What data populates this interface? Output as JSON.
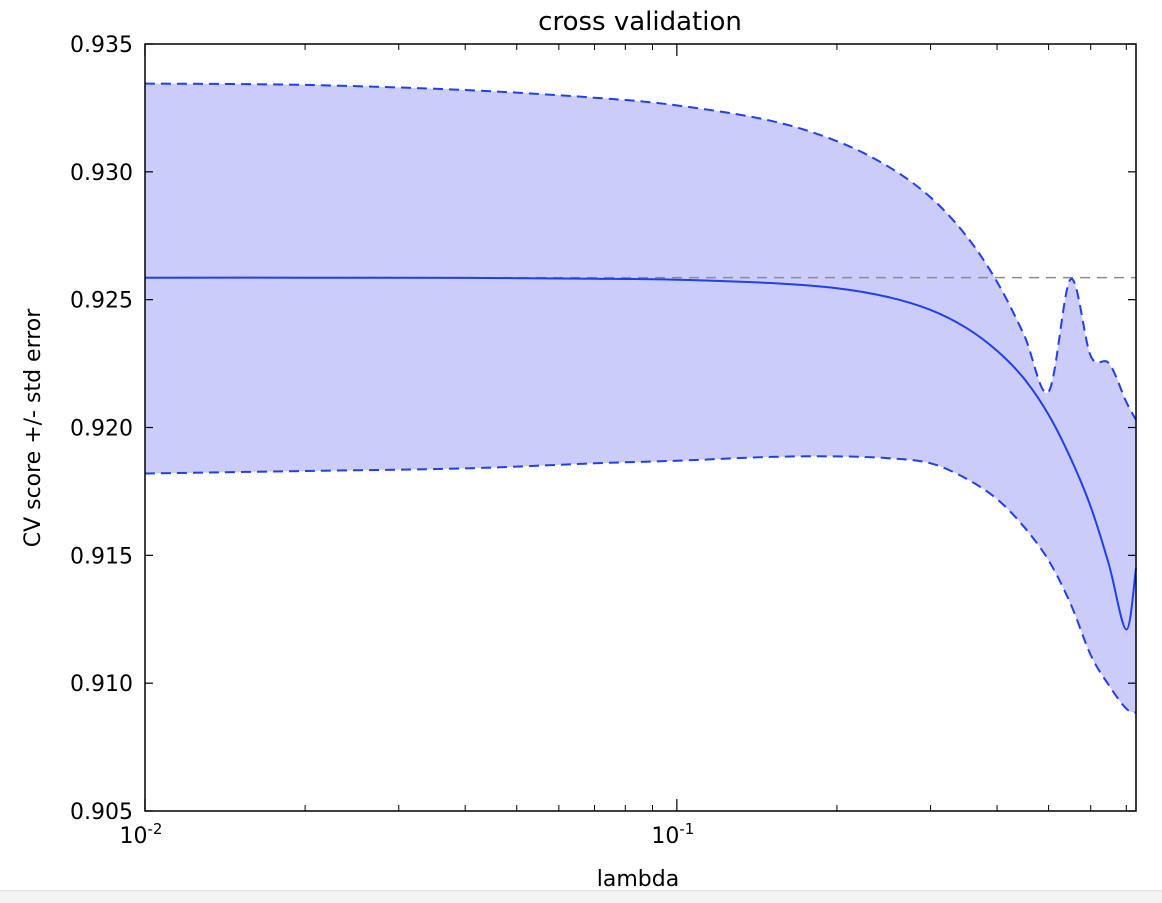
{
  "chart_data": {
    "type": "line",
    "title": "cross validation",
    "xlabel": "lambda",
    "ylabel": "CV score +/- std error",
    "xscale": "log",
    "xlim": [
      0.01,
      0.73
    ],
    "ylim": [
      0.905,
      0.935
    ],
    "yticks": [
      "0.935",
      "0.930",
      "0.925",
      "0.920",
      "0.915",
      "0.910",
      "0.905"
    ],
    "xticks": [
      {
        "value": 0.01,
        "base": "10",
        "exp": "-2"
      },
      {
        "value": 0.1,
        "base": "10",
        "exp": "-1"
      }
    ],
    "grid": false,
    "x": [
      0.01,
      0.02,
      0.04,
      0.07,
      0.1,
      0.15,
      0.2,
      0.25,
      0.3,
      0.35,
      0.4,
      0.45,
      0.5,
      0.55,
      0.6,
      0.65,
      0.7,
      0.73
    ],
    "series": [
      {
        "role": "mean",
        "style": "solid",
        "values": [
          0.92586,
          0.92586,
          0.92585,
          0.92582,
          0.92578,
          0.92565,
          0.92545,
          0.9251,
          0.9246,
          0.9239,
          0.923,
          0.9219,
          0.9205,
          0.9188,
          0.9169,
          0.9146,
          0.9121,
          0.9145
        ]
      },
      {
        "role": "upper",
        "style": "dashed",
        "values": [
          0.93345,
          0.9334,
          0.9332,
          0.9329,
          0.9326,
          0.932,
          0.9312,
          0.9302,
          0.929,
          0.9275,
          0.9257,
          0.9236,
          0.9214,
          0.9258,
          0.9228,
          0.9225,
          0.921,
          0.9203
        ]
      },
      {
        "role": "lower",
        "style": "dashed",
        "values": [
          0.9182,
          0.9183,
          0.9184,
          0.9186,
          0.9187,
          0.91885,
          0.91887,
          0.9188,
          0.9186,
          0.918,
          0.9172,
          0.9161,
          0.9148,
          0.9131,
          0.9111,
          0.9099,
          0.909,
          0.90885
        ]
      }
    ],
    "reference_line": {
      "y": 0.92586,
      "style": "dashed"
    },
    "colors": {
      "line": "#1f3ff0",
      "fill": "#ccccfa",
      "reference": "#8c8c8c",
      "axes": "#000000"
    }
  }
}
